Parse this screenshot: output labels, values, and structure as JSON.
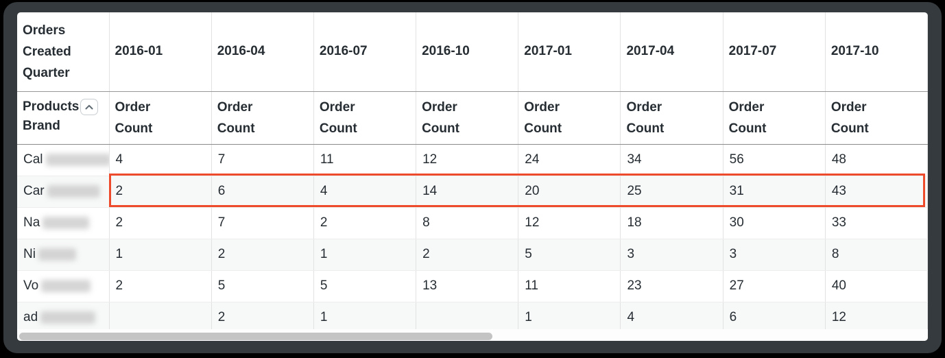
{
  "colors": {
    "highlight_border": "#ED4B2B",
    "scrollbar_thumb": "#C4C4C4",
    "header_text": "#262D33"
  },
  "table": {
    "corner_header_lines": [
      "Orders",
      "Created",
      "Quarter"
    ],
    "quarters": [
      "2016-01",
      "2016-04",
      "2016-07",
      "2016-10",
      "2017-01",
      "2017-04",
      "2017-07",
      "2017-10"
    ],
    "row_dimension_lines": [
      "Products",
      "Brand"
    ],
    "sort_icon": "chevron-up",
    "measure_label_lines": [
      "Order",
      "Count"
    ],
    "rows": [
      {
        "brand_prefix": "Cal",
        "redacted": true,
        "blur_width": 95,
        "highlighted": false,
        "values": [
          "4",
          "7",
          "11",
          "12",
          "24",
          "34",
          "56",
          "48"
        ]
      },
      {
        "brand_prefix": "Car",
        "redacted": true,
        "blur_width": 77,
        "highlighted": true,
        "values": [
          "2",
          "6",
          "4",
          "14",
          "20",
          "25",
          "31",
          "43"
        ]
      },
      {
        "brand_prefix": "Na",
        "redacted": true,
        "blur_width": 68,
        "highlighted": false,
        "values": [
          "2",
          "7",
          "2",
          "8",
          "12",
          "18",
          "30",
          "33"
        ]
      },
      {
        "brand_prefix": "Ni",
        "redacted": true,
        "blur_width": 55,
        "highlighted": false,
        "values": [
          "1",
          "2",
          "1",
          "2",
          "5",
          "3",
          "3",
          "8"
        ]
      },
      {
        "brand_prefix": "Vo",
        "redacted": true,
        "blur_width": 72,
        "highlighted": false,
        "values": [
          "2",
          "5",
          "5",
          "13",
          "11",
          "23",
          "27",
          "40"
        ]
      },
      {
        "brand_prefix": "ad",
        "redacted": true,
        "blur_width": 80,
        "highlighted": false,
        "values": [
          "",
          "2",
          "1",
          "",
          "1",
          "4",
          "6",
          "12"
        ]
      }
    ]
  },
  "scrollbar": {
    "orientation": "horizontal"
  }
}
